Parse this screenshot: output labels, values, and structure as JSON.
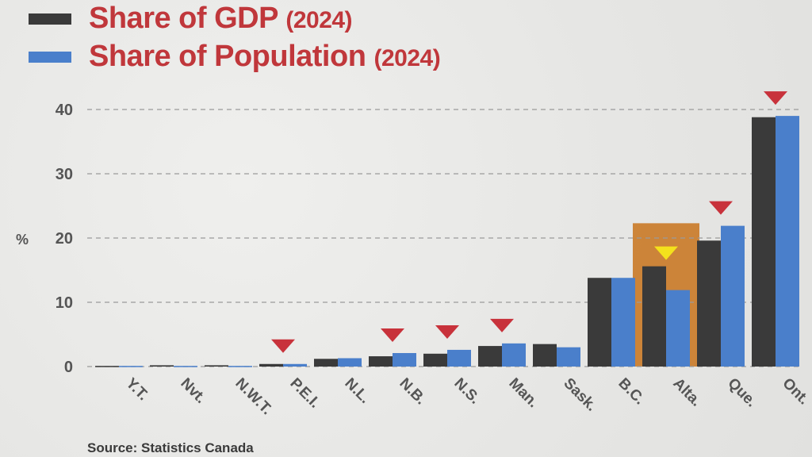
{
  "legend": {
    "gdp": {
      "text": "Share of GDP",
      "year": "(2024)",
      "color": "#3a3a3a"
    },
    "pop": {
      "text": "Share of Population",
      "year": "(2024)",
      "color": "#4a7fcb"
    }
  },
  "source": "Source: Statistics Canada",
  "colors": {
    "gdp": "#3a3a3a",
    "pop": "#4a7fcb",
    "marker": "#c8323b",
    "marker_highlight": "#f4e11c",
    "highlight_box": "#c8731b",
    "grid": "#9a9a9a",
    "tick_text": "#555555"
  },
  "chart_data": {
    "type": "bar",
    "categories": [
      "Y.T.",
      "Nvt.",
      "N.W.T.",
      "P.E.I.",
      "N.L.",
      "N.B.",
      "N.S.",
      "Man.",
      "Sask.",
      "B.C.",
      "Alta.",
      "Que.",
      "Ont."
    ],
    "series": [
      {
        "name": "Share of GDP (2024)",
        "values": [
          0.1,
          0.2,
          0.2,
          0.4,
          1.2,
          1.6,
          2.0,
          3.2,
          3.5,
          13.8,
          15.6,
          19.6,
          38.8
        ]
      },
      {
        "name": "Share of Population (2024)",
        "values": [
          0.1,
          0.1,
          0.1,
          0.4,
          1.3,
          2.1,
          2.6,
          3.6,
          3.0,
          13.8,
          11.9,
          21.9,
          39.0
        ]
      }
    ],
    "ylabel": "%",
    "ylim": [
      0,
      42
    ],
    "yticks": [
      0,
      10,
      20,
      30,
      40
    ],
    "grid": true,
    "markers": [
      {
        "category": "P.E.I.",
        "style": "red-triangle"
      },
      {
        "category": "N.B.",
        "style": "red-triangle"
      },
      {
        "category": "N.S.",
        "style": "red-triangle"
      },
      {
        "category": "Man.",
        "style": "red-triangle"
      },
      {
        "category": "Alta.",
        "style": "yellow-triangle-highlighted"
      },
      {
        "category": "Que.",
        "style": "red-triangle"
      },
      {
        "category": "Ont.",
        "style": "red-triangle"
      }
    ],
    "highlighted_category": "Alta."
  }
}
